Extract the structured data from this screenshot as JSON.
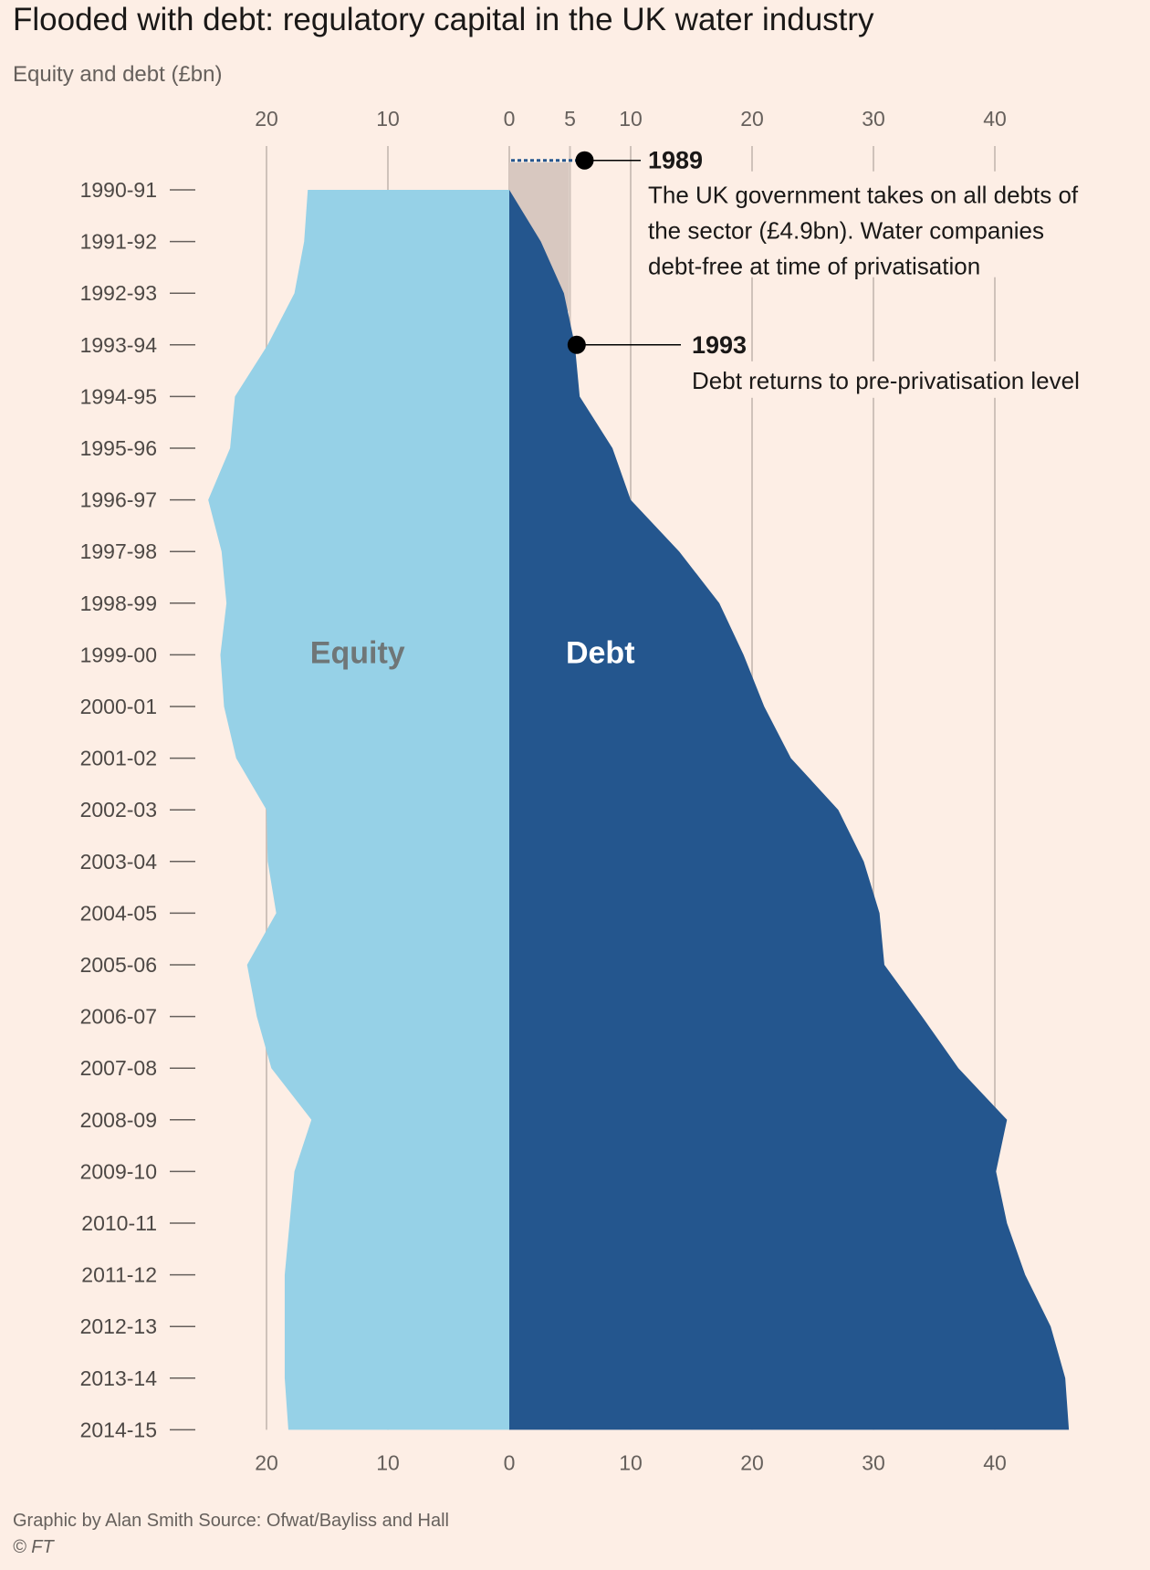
{
  "header": {
    "title": "Flooded with debt: regulatory capital in the UK water industry",
    "subtitle": "Equity and debt (£bn)"
  },
  "colors": {
    "background": "#fdeee5",
    "equity": "#96d1e7",
    "debt": "#24568e",
    "pre_privatisation_debt": "#d8c8c0",
    "gridline": "#cfc2ba",
    "annotation": "#000000"
  },
  "chart_data": {
    "type": "area",
    "orientation": "horizontal-back-to-back",
    "categories": [
      "1990-91",
      "1991-92",
      "1992-93",
      "1993-94",
      "1994-95",
      "1995-96",
      "1996-97",
      "1997-98",
      "1998-99",
      "1999-00",
      "2000-01",
      "2001-02",
      "2002-03",
      "2003-04",
      "2004-05",
      "2005-06",
      "2006-07",
      "2007-08",
      "2008-09",
      "2009-10",
      "2010-11",
      "2011-12",
      "2012-13",
      "2013-14",
      "2014-15"
    ],
    "series": [
      {
        "name": "Equity",
        "side": "left",
        "color": "#96d1e7",
        "values": [
          16.6,
          16.9,
          17.7,
          19.9,
          22.6,
          23.0,
          24.8,
          23.7,
          23.3,
          23.8,
          23.5,
          22.5,
          20.0,
          19.9,
          19.2,
          21.6,
          20.8,
          19.6,
          16.3,
          17.7,
          18.1,
          18.5,
          18.5,
          18.5,
          18.2
        ]
      },
      {
        "name": "Debt",
        "side": "right",
        "color": "#24568e",
        "values": [
          0,
          2.6,
          4.5,
          5.4,
          5.8,
          8.5,
          10.0,
          14.0,
          17.3,
          19.3,
          21.0,
          23.2,
          27.1,
          29.2,
          30.5,
          30.9,
          34.0,
          37.0,
          41.0,
          40.1,
          41.0,
          42.5,
          44.6,
          45.8,
          46.1
        ]
      }
    ],
    "pre_privatisation_debt": 4.9,
    "equity_axis": {
      "ticks": [
        20,
        10,
        0
      ]
    },
    "debt_top_axis": {
      "ticks": [
        0,
        5,
        10,
        20,
        30,
        40
      ]
    },
    "debt_bottom_axis": {
      "ticks": [
        0,
        10,
        20,
        30,
        40
      ]
    },
    "xlim": [
      -25,
      48
    ],
    "grid": true,
    "labels": {
      "equity": "Equity",
      "debt": "Debt"
    },
    "annotations": [
      {
        "year": "1989",
        "lines": [
          "The UK government takes on all debts of",
          "the sector (£4.9bn). Water companies",
          "debt-free at time of privatisation"
        ],
        "point_value": 5,
        "row": -0.5
      },
      {
        "year": "1993",
        "lines": [
          "Debt returns to pre-privatisation level"
        ],
        "point_value": 5.4,
        "row": 3
      }
    ]
  },
  "footer": {
    "credit": "Graphic by Alan Smith   Source: Ofwat/Bayliss and Hall",
    "copyright": "© FT"
  }
}
